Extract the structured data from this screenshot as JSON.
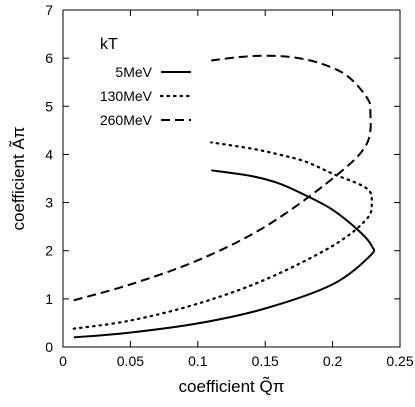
{
  "chart_data": {
    "type": "line",
    "xlabel": "coefficient Q̃π",
    "ylabel": "coefficient Ãπ",
    "xlim": [
      0,
      0.25
    ],
    "ylim": [
      0,
      7
    ],
    "x_ticks": [
      "0",
      "0.05",
      "0.1",
      "0.15",
      "0.2",
      "0.25"
    ],
    "y_ticks": [
      "0",
      "1",
      "2",
      "3",
      "4",
      "5",
      "6",
      "7"
    ],
    "grid": false,
    "legend": {
      "title": "kT",
      "position": "top-left"
    },
    "series": [
      {
        "name": "5MeV",
        "style": "solid",
        "color": "#000000",
        "x": [
          0.008,
          0.05,
          0.1,
          0.15,
          0.2,
          0.228,
          0.229,
          0.22,
          0.2,
          0.18,
          0.16,
          0.14,
          0.11
        ],
        "y": [
          0.2,
          0.3,
          0.49,
          0.8,
          1.3,
          1.9,
          2.1,
          2.4,
          2.85,
          3.15,
          3.4,
          3.55,
          3.67
        ]
      },
      {
        "name": "130MeV",
        "style": "dotted",
        "color": "#000000",
        "x": [
          0.008,
          0.05,
          0.1,
          0.15,
          0.2,
          0.225,
          0.229,
          0.225,
          0.2,
          0.18,
          0.16,
          0.14,
          0.11
        ],
        "y": [
          0.38,
          0.55,
          0.9,
          1.4,
          2.1,
          2.65,
          3.0,
          3.3,
          3.6,
          3.85,
          4.0,
          4.12,
          4.25
        ]
      },
      {
        "name": "260MeV",
        "style": "dashed",
        "color": "#000000",
        "x": [
          0.008,
          0.05,
          0.1,
          0.15,
          0.2,
          0.225,
          0.228,
          0.225,
          0.21,
          0.19,
          0.17,
          0.15,
          0.13,
          0.11
        ],
        "y": [
          0.97,
          1.3,
          1.8,
          2.5,
          3.5,
          4.2,
          4.9,
          5.2,
          5.65,
          5.9,
          6.02,
          6.05,
          6.02,
          5.95
        ]
      }
    ]
  }
}
